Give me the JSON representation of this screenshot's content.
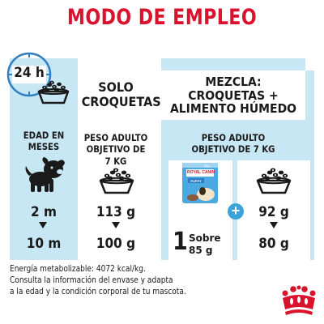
{
  "title": "MODO DE EMPLEO",
  "clock": {
    "label": "24 h"
  },
  "left": {
    "header": [
      "SOLO",
      "CROQUETAS"
    ],
    "age_label": [
      "EDAD EN",
      "MESES"
    ],
    "weight_label": [
      "PESO ADULTO",
      "OBJETIVO DE 7 KG"
    ],
    "age_from": "2 m",
    "age_to": "10 m",
    "dry_from": "113 g",
    "dry_to": "100 g"
  },
  "right": {
    "header": [
      "MEZCLA:",
      "CROQUETAS +",
      "ALIMENTO HÚMEDO"
    ],
    "weight_label": [
      "PESO ADULTO",
      "OBJETIVO DE 7 KG"
    ],
    "pouch_count": "1",
    "pouch_unit": "Sobre",
    "pouch_weight": "85 g",
    "dry_from": "92 g",
    "dry_to": "80 g",
    "plus": "+"
  },
  "pouch": {
    "brand": "ROYAL CANIN",
    "variant": "PUPPY",
    "weight": "85g"
  },
  "footer": [
    "Energía metabolizable: 4072 kcal/kg.",
    "Consulta la información del envase y adapta",
    "a la edad y la condición corporal de tu mascota."
  ],
  "colors": {
    "red": "#d9122e",
    "panel": "#c7e7f5",
    "accent": "#3aa4d8",
    "clock": "#2f7fc1"
  }
}
